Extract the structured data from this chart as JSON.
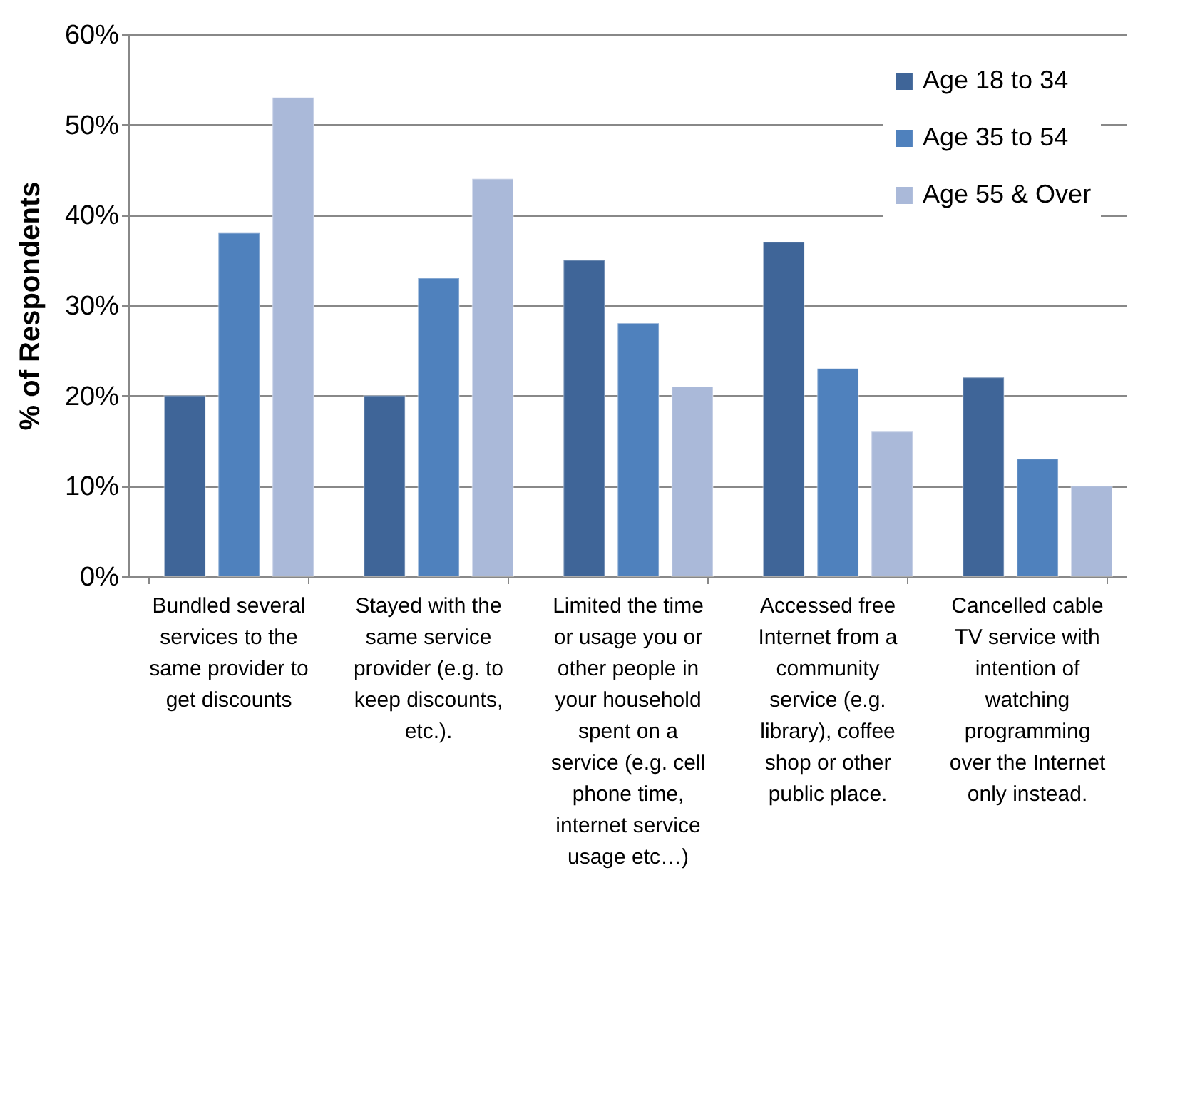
{
  "chart_data": {
    "type": "bar",
    "ylabel": "% of Respondents",
    "categories": [
      "Bundled several services to the same provider to get discounts",
      "Stayed with the same service provider (e.g. to keep discounts, etc.).",
      "Limited the time or usage you or other people in your household spent on a service (e.g. cell phone time, internet service usage etc…)",
      "Accessed free Internet from a community service (e.g. library), coffee shop or other public place.",
      "Cancelled cable TV service with intention of watching programming over the Internet only instead."
    ],
    "series": [
      {
        "name": "Age 18 to 34",
        "color": "#3f6598",
        "values": [
          20,
          20,
          35,
          37,
          22
        ]
      },
      {
        "name": "Age 35 to 54",
        "color": "#4f81bd",
        "values": [
          38,
          33,
          28,
          23,
          13
        ]
      },
      {
        "name": "Age 55 & Over",
        "color": "#aab9d9",
        "values": [
          53,
          44,
          21,
          16,
          10
        ]
      }
    ],
    "ylim": [
      0,
      60
    ],
    "yticks": [
      {
        "value": 0,
        "label": "0%"
      },
      {
        "value": 10,
        "label": "10%"
      },
      {
        "value": 20,
        "label": "20%"
      },
      {
        "value": 30,
        "label": "30%"
      },
      {
        "value": 40,
        "label": "40%"
      },
      {
        "value": 50,
        "label": "50%"
      },
      {
        "value": 60,
        "label": "60%"
      }
    ],
    "grid": "y",
    "legend": "top right"
  }
}
